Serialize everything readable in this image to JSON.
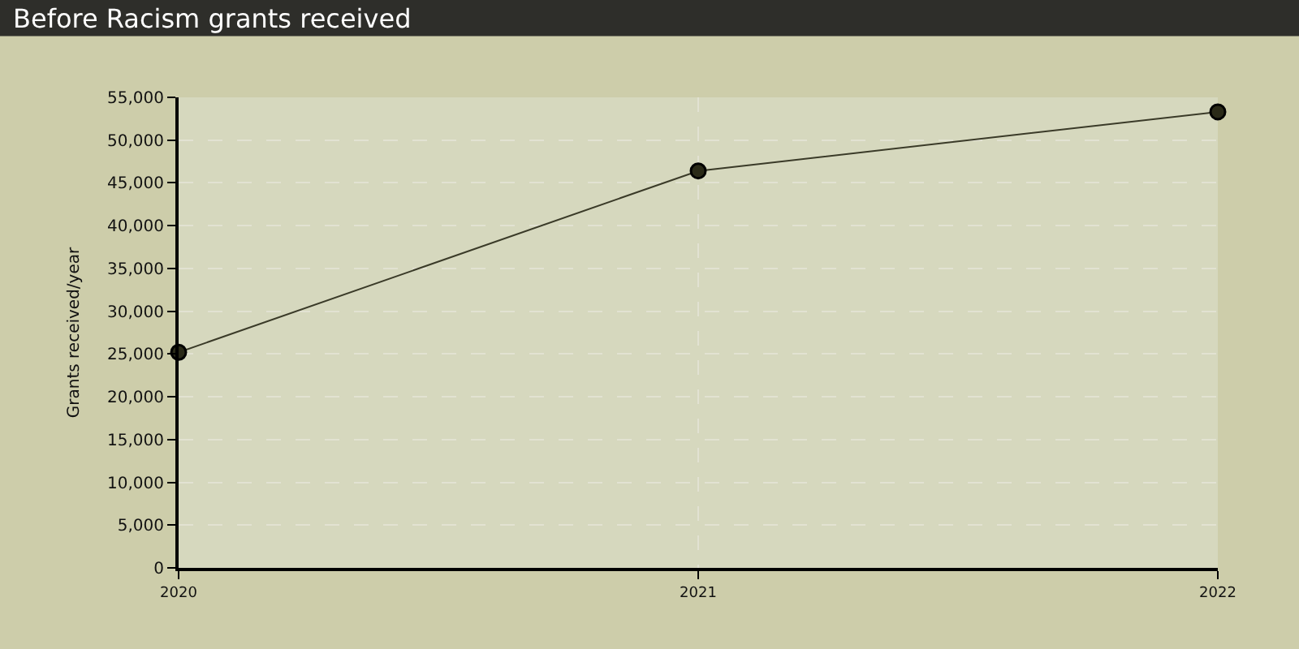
{
  "chart_data": {
    "type": "line",
    "title": "Before Racism grants received",
    "ylabel": "Grants received/year",
    "x": [
      2020,
      2021,
      2022
    ],
    "xlim": [
      2020,
      2022
    ],
    "xticks": [
      2020,
      2021,
      2022
    ],
    "series": [
      {
        "color": "#3a3a28",
        "values": [
          25200,
          46400,
          53300
        ]
      }
    ],
    "ylim": [
      0,
      55000
    ],
    "yticks": [
      {
        "value": 0,
        "label": "0"
      },
      {
        "value": 5000,
        "label": "5,000"
      },
      {
        "value": 10000,
        "label": "10,000"
      },
      {
        "value": 15000,
        "label": "15,000"
      },
      {
        "value": 20000,
        "label": "20,000"
      },
      {
        "value": 25000,
        "label": "25,000"
      },
      {
        "value": 30000,
        "label": "30,000"
      },
      {
        "value": 35000,
        "label": "35,000"
      },
      {
        "value": 40000,
        "label": "40,000"
      },
      {
        "value": 45000,
        "label": "45,000"
      },
      {
        "value": 50000,
        "label": "50,000"
      },
      {
        "value": 55000,
        "label": "55,000"
      }
    ],
    "grid": true,
    "marker": "circle",
    "line_style": "solid",
    "legend": false
  }
}
